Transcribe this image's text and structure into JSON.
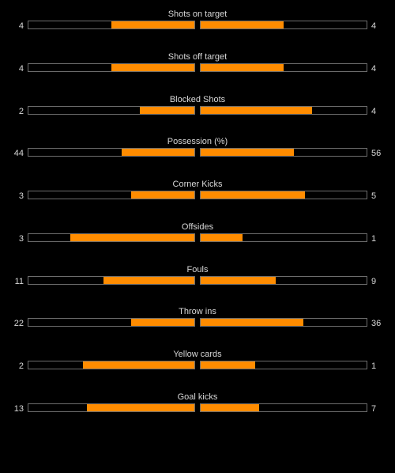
{
  "colors": {
    "background": "#000000",
    "bar_fill": "#ff8c00",
    "bar_border": "#6d6d6d",
    "text": "#d8d8d8"
  },
  "stats": [
    {
      "label": "Shots on target",
      "home": "4",
      "away": "4",
      "home_fill": 0.5,
      "away_fill": 0.5
    },
    {
      "label": "Shots off target",
      "home": "4",
      "away": "4",
      "home_fill": 0.5,
      "away_fill": 0.5
    },
    {
      "label": "Blocked Shots",
      "home": "2",
      "away": "4",
      "home_fill": 0.33,
      "away_fill": 0.67
    },
    {
      "label": "Possession (%)",
      "home": "44",
      "away": "56",
      "home_fill": 0.44,
      "away_fill": 0.56
    },
    {
      "label": "Corner Kicks",
      "home": "3",
      "away": "5",
      "home_fill": 0.38,
      "away_fill": 0.63
    },
    {
      "label": "Offsides",
      "home": "3",
      "away": "1",
      "home_fill": 0.75,
      "away_fill": 0.25
    },
    {
      "label": "Fouls",
      "home": "11",
      "away": "9",
      "home_fill": 0.55,
      "away_fill": 0.45
    },
    {
      "label": "Throw ins",
      "home": "22",
      "away": "36",
      "home_fill": 0.38,
      "away_fill": 0.62
    },
    {
      "label": "Yellow cards",
      "home": "2",
      "away": "1",
      "home_fill": 0.67,
      "away_fill": 0.33
    },
    {
      "label": "Goal kicks",
      "home": "13",
      "away": "7",
      "home_fill": 0.65,
      "away_fill": 0.35
    }
  ]
}
